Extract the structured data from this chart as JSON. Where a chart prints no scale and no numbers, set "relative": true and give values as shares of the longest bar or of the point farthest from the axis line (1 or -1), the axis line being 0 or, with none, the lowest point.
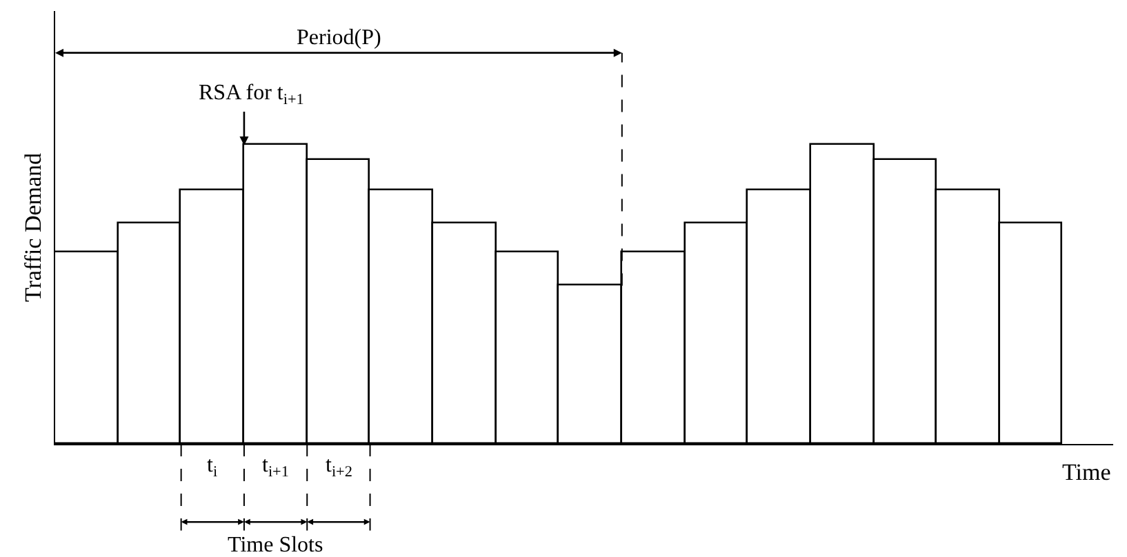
{
  "chart_data": {
    "type": "bar",
    "relative": true,
    "xlabel": "Time",
    "ylabel": "Traffic Demand",
    "categories": [
      null,
      null,
      null,
      null,
      null,
      null,
      null,
      null,
      null,
      null,
      null,
      null,
      null,
      null,
      null,
      null
    ],
    "values": [
      0.64,
      0.74,
      0.85,
      1,
      0.95,
      0.85,
      0.74,
      0.64,
      0.53,
      0.64,
      0.74,
      0.85,
      1,
      0.95,
      0.85,
      0.74
    ],
    "color": "#ffffff",
    "legend": false,
    "annotations": [
      "Period(P)",
      "RSA for t$_{i+1}$",
      "t$_{i}$",
      "t$_{i+1}$",
      "t$_{i+2}$",
      "Time Slots"
    ]
  }
}
